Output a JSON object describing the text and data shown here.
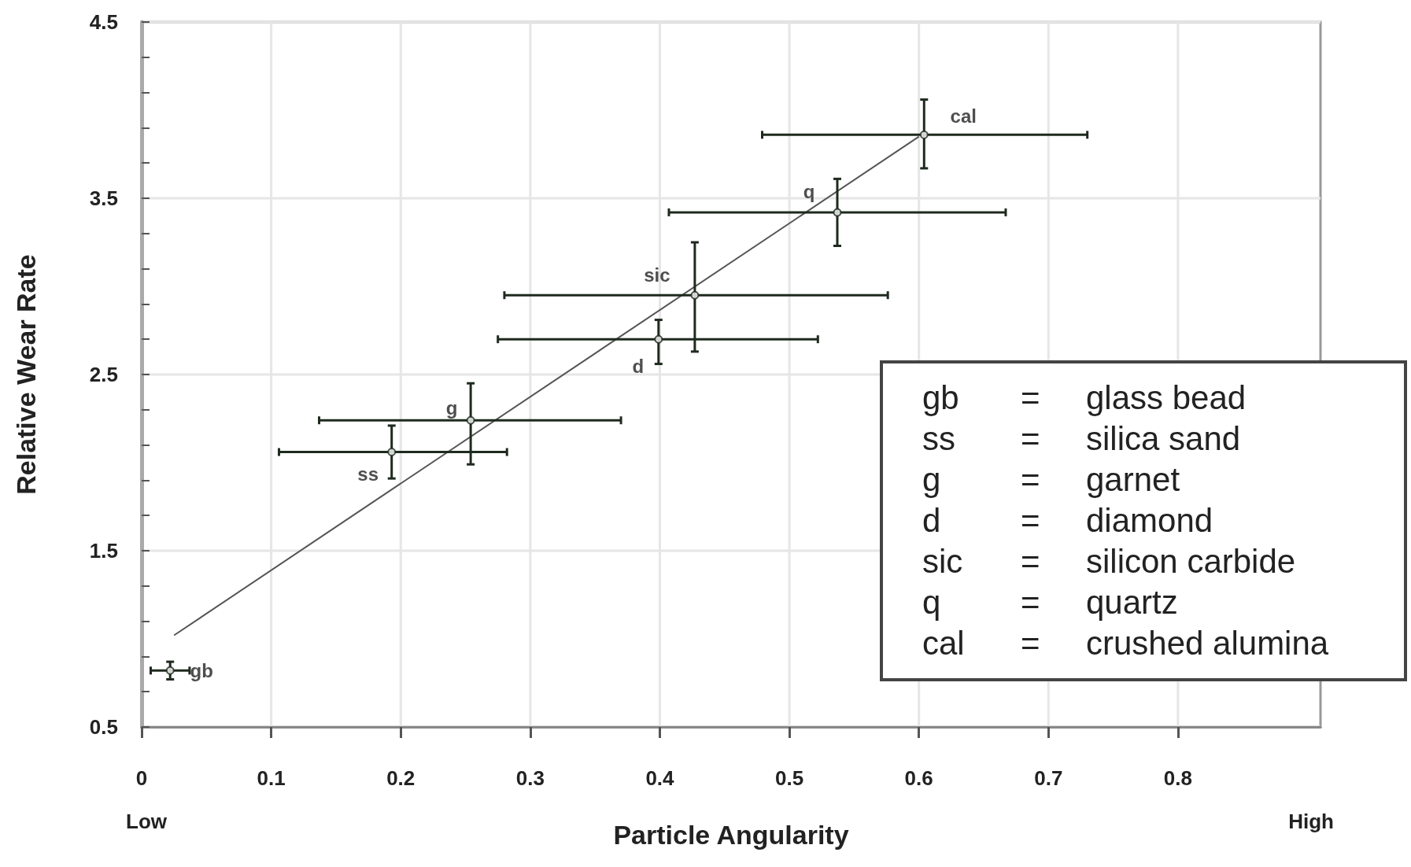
{
  "chart_data": {
    "type": "scatter",
    "xlabel": "Particle Angularity",
    "ylabel": "Relative Wear Rate",
    "xlim": [
      0,
      0.91
    ],
    "ylim": [
      0.5,
      4.5
    ],
    "xticks": [
      0,
      0.1,
      0.2,
      0.3,
      0.4,
      0.5,
      0.6,
      0.7,
      0.8
    ],
    "yticks": [
      0.5,
      {
        "value": 0.7,
        "label": null
      },
      {
        "value": 0.9,
        "label": null
      },
      {
        "value": 1.1,
        "label": null
      },
      {
        "value": 1.3,
        "label": null
      },
      1.5,
      {
        "value": 1.7,
        "label": null
      },
      {
        "value": 1.9,
        "label": null
      },
      {
        "value": 2.1,
        "label": null
      },
      {
        "value": 2.3,
        "label": null
      },
      2.5,
      {
        "value": 2.7,
        "label": null
      },
      {
        "value": 2.9,
        "label": null
      },
      {
        "value": 3.1,
        "label": null
      },
      {
        "value": 3.3,
        "label": null
      },
      3.5,
      {
        "value": 3.7,
        "label": null
      },
      {
        "value": 3.9,
        "label": null
      },
      {
        "value": 4.1,
        "label": null
      },
      {
        "value": 4.3,
        "label": null
      },
      4.5
    ],
    "grid": true,
    "marker": "circle",
    "series": [
      {
        "color": "#1f2a1f",
        "x": [
          0.022,
          0.193,
          0.254,
          0.399,
          0.427,
          0.537,
          0.604
        ],
        "values": [
          0.82,
          2.06,
          2.24,
          2.7,
          2.95,
          3.42,
          3.86
        ],
        "value_labels": [
          "gb",
          "ss",
          "g",
          "d",
          "sic",
          "q",
          "cal"
        ],
        "errors": [
          [
            0.77,
            0.87
          ],
          [
            1.91,
            2.21
          ],
          [
            1.99,
            2.45
          ],
          [
            2.56,
            2.81
          ],
          [
            2.63,
            3.25
          ],
          [
            3.23,
            3.61
          ],
          [
            3.67,
            4.06
          ]
        ],
        "xerrors": [
          [
            0.007,
            0.037
          ],
          [
            0.106,
            0.282
          ],
          [
            0.137,
            0.37
          ],
          [
            0.275,
            0.522
          ],
          [
            0.28,
            0.576
          ],
          [
            0.407,
            0.667
          ],
          [
            0.479,
            0.73
          ]
        ]
      },
      {
        "type": "line",
        "color": "#555555",
        "marker": "none",
        "x": [
          0.025,
          0.6
        ],
        "values": [
          1.02,
          3.85
        ]
      }
    ],
    "annotations": [
      "Low",
      "High",
      "gb = glass bead",
      "ss = silica sand",
      "g = garnet",
      "d = diamond",
      "sic = silicon carbide",
      "q = quartz",
      "cal = crushed alumina"
    ]
  }
}
